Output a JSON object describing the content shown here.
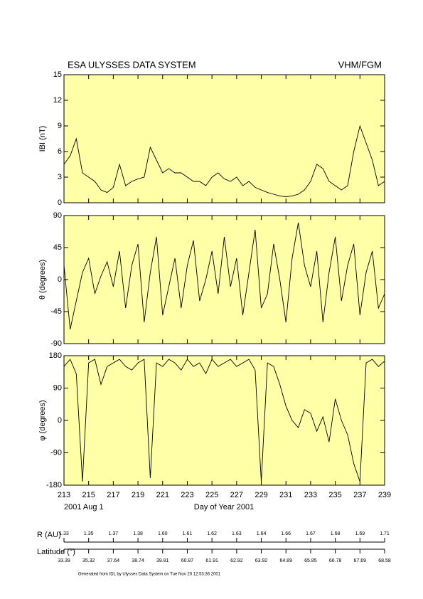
{
  "header": {
    "title": "ESA ULYSSES DATA SYSTEM",
    "instrument": "VHM/FGM"
  },
  "chart_data": [
    {
      "type": "line",
      "y_label": "IBI (nT)",
      "x": [
        213,
        213.5,
        214,
        214.5,
        215,
        215.5,
        216,
        216.5,
        217,
        217.5,
        218,
        218.5,
        219,
        219.5,
        220,
        220.5,
        221,
        221.5,
        222,
        222.5,
        223,
        223.5,
        224,
        224.5,
        225,
        225.5,
        226,
        226.5,
        227,
        227.5,
        228,
        228.5,
        229,
        229.5,
        230,
        230.5,
        231,
        231.5,
        232,
        232.5,
        233,
        233.5,
        234,
        234.5,
        235,
        235.5,
        236,
        236.5,
        237,
        237.5,
        238,
        238.5,
        239
      ],
      "values": [
        4.5,
        5.5,
        7.5,
        3.5,
        3.0,
        2.5,
        1.5,
        1.2,
        1.8,
        4.5,
        2.0,
        2.5,
        2.8,
        3.0,
        6.5,
        5.0,
        3.5,
        4.0,
        3.5,
        3.5,
        3.0,
        2.5,
        2.5,
        2.0,
        3.0,
        3.5,
        2.8,
        2.5,
        3.0,
        2.0,
        2.5,
        1.8,
        1.5,
        1.2,
        1.0,
        0.8,
        0.7,
        0.8,
        1.0,
        1.5,
        2.5,
        4.5,
        4.0,
        2.5,
        2.0,
        1.5,
        2.0,
        6.0,
        9.0,
        7.0,
        5.0,
        2.0,
        2.5
      ],
      "color": "#000000",
      "xlim": [
        213,
        239
      ],
      "xticks": [
        213,
        215,
        217,
        219,
        221,
        223,
        225,
        227,
        229,
        231,
        233,
        235,
        237,
        239
      ],
      "ylim": [
        0,
        15
      ],
      "yticks": [
        0,
        3,
        6,
        9,
        12,
        15
      ]
    },
    {
      "type": "line",
      "y_label": "θ (degrees)",
      "x": [
        213,
        213.5,
        214,
        214.5,
        215,
        215.5,
        216,
        216.5,
        217,
        217.5,
        218,
        218.5,
        219,
        219.5,
        220,
        220.5,
        221,
        221.5,
        222,
        222.5,
        223,
        223.5,
        224,
        224.5,
        225,
        225.5,
        226,
        226.5,
        227,
        227.5,
        228,
        228.5,
        229,
        229.5,
        230,
        230.5,
        231,
        231.5,
        232,
        232.5,
        233,
        233.5,
        234,
        234.5,
        235,
        235.5,
        236,
        236.5,
        237,
        237.5,
        238,
        238.5,
        239
      ],
      "values": [
        20,
        -70,
        -30,
        10,
        30,
        -20,
        5,
        25,
        -10,
        40,
        -40,
        20,
        50,
        -60,
        10,
        60,
        -50,
        -10,
        30,
        -40,
        20,
        55,
        -30,
        0,
        40,
        -20,
        60,
        -10,
        30,
        -50,
        10,
        70,
        -40,
        -20,
        50,
        0,
        -60,
        30,
        80,
        20,
        -10,
        40,
        -60,
        10,
        60,
        -30,
        20,
        50,
        -50,
        10,
        40,
        -40,
        -20
      ],
      "color": "#000000",
      "xlim": [
        213,
        239
      ],
      "xticks": [
        213,
        215,
        217,
        219,
        221,
        223,
        225,
        227,
        229,
        231,
        233,
        235,
        237,
        239
      ],
      "ylim": [
        -90,
        90
      ],
      "yticks": [
        -90,
        -45,
        0,
        45,
        90
      ]
    },
    {
      "type": "line",
      "y_label": "φ (degrees)",
      "x_label": "Day of Year 2001",
      "start_date": "2001 Aug  1",
      "x": [
        213,
        213.5,
        214,
        214.5,
        215,
        215.5,
        216,
        216.5,
        217,
        217.5,
        218,
        218.5,
        219,
        219.5,
        220,
        220.5,
        221,
        221.5,
        222,
        222.5,
        223,
        223.5,
        224,
        224.5,
        225,
        225.5,
        226,
        226.5,
        227,
        227.5,
        228,
        228.5,
        229,
        229.5,
        230,
        230.5,
        231,
        231.5,
        232,
        232.5,
        233,
        233.5,
        234,
        234.5,
        235,
        235.5,
        236,
        236.5,
        237,
        237.5,
        238,
        238.5,
        239
      ],
      "values": [
        150,
        170,
        130,
        -170,
        160,
        170,
        100,
        150,
        160,
        170,
        150,
        140,
        160,
        170,
        -160,
        160,
        150,
        170,
        160,
        140,
        170,
        150,
        160,
        130,
        170,
        150,
        160,
        170,
        150,
        160,
        170,
        140,
        -170,
        160,
        150,
        100,
        40,
        0,
        -20,
        30,
        20,
        -30,
        10,
        -60,
        60,
        0,
        -40,
        -120,
        -170,
        160,
        170,
        150,
        165
      ],
      "color": "#000000",
      "xlim": [
        213,
        239
      ],
      "xticks": [
        213,
        215,
        217,
        219,
        221,
        223,
        225,
        227,
        229,
        231,
        233,
        235,
        237,
        239
      ],
      "ylim": [
        -180,
        180
      ],
      "yticks": [
        -180,
        -90,
        0,
        90,
        180
      ]
    }
  ],
  "ephemeris": {
    "r_label": "R (AU)",
    "r_values": [
      "1.33",
      "1.35",
      "1.37",
      "1.38",
      "1.60",
      "1.61",
      "1.62",
      "1.63",
      "1.64",
      "1.66",
      "1.67",
      "1.68",
      "1.69",
      "1.71"
    ],
    "lat_label": "Latitude (°)",
    "lat_values": [
      "33.39",
      "35.32",
      "37.64",
      "38.74",
      "39.81",
      "60.87",
      "61.91",
      "62.92",
      "63.92",
      "64.89",
      "65.85",
      "66.78",
      "67.69",
      "68.58"
    ]
  },
  "footer": "Generated from IDL by Ulysses Data System on Tue Nov 20 12:53:36 2001"
}
